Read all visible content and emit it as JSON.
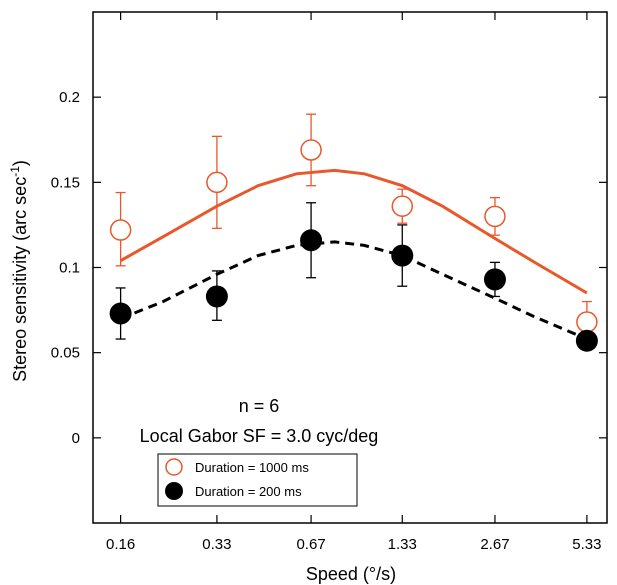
{
  "chart_data": {
    "type": "scatter",
    "xlabel": "Speed (°/s)",
    "ylabel": "Stereo sensitivity (arc sec",
    "ylabel_superscript": "-1",
    "ylabel_suffix": ")",
    "x_scale": "log",
    "x_ticks": [
      0.16,
      0.33,
      0.67,
      1.33,
      2.67,
      5.33
    ],
    "x_tick_labels": [
      "0.16",
      "0.33",
      "0.67",
      "1.33",
      "2.67",
      "5.33"
    ],
    "xlim": [
      0.13,
      6.2
    ],
    "y_ticks": [
      0,
      0.05,
      0.1,
      0.15,
      0.2
    ],
    "y_tick_labels": [
      "0",
      "0.05",
      "0.1",
      "0.15",
      "0.2"
    ],
    "ylim": [
      -0.05,
      0.25
    ],
    "grid": false,
    "annotations": [
      "n = 6",
      "Local Gabor SF = 3.0 cyc/deg"
    ],
    "legend_position": "bottom-left",
    "series": [
      {
        "name": "Duration = 1000 ms",
        "marker": "open-circle",
        "color": "#E8582A",
        "x": [
          0.16,
          0.33,
          0.67,
          1.33,
          2.67,
          5.33
        ],
        "y": [
          0.122,
          0.15,
          0.169,
          0.136,
          0.13,
          0.068
        ],
        "err_low": [
          0.101,
          0.123,
          0.148,
          0.126,
          0.119,
          0.058
        ],
        "err_high": [
          0.144,
          0.177,
          0.19,
          0.146,
          0.141,
          0.08
        ],
        "fit_line": "solid",
        "fit": {
          "x": [
            0.16,
            0.22,
            0.33,
            0.45,
            0.6,
            0.8,
            1.0,
            1.33,
            1.8,
            2.67,
            3.6,
            5.33
          ],
          "y": [
            0.104,
            0.118,
            0.136,
            0.148,
            0.155,
            0.157,
            0.155,
            0.148,
            0.136,
            0.117,
            0.103,
            0.085
          ]
        }
      },
      {
        "name": "Duration = 200 ms",
        "marker": "filled-circle",
        "color": "#000000",
        "x": [
          0.16,
          0.33,
          0.67,
          1.33,
          2.67,
          5.33
        ],
        "y": [
          0.073,
          0.083,
          0.116,
          0.107,
          0.093,
          0.057
        ],
        "err_low": [
          0.058,
          0.069,
          0.094,
          0.089,
          0.083,
          0.052
        ],
        "err_high": [
          0.088,
          0.098,
          0.138,
          0.125,
          0.103,
          0.062
        ],
        "fit_line": "dashed",
        "fit": {
          "x": [
            0.16,
            0.22,
            0.33,
            0.45,
            0.6,
            0.8,
            1.0,
            1.33,
            1.8,
            2.67,
            3.6,
            5.33
          ],
          "y": [
            0.07,
            0.08,
            0.096,
            0.107,
            0.113,
            0.115,
            0.113,
            0.107,
            0.096,
            0.082,
            0.071,
            0.058
          ]
        }
      }
    ]
  }
}
